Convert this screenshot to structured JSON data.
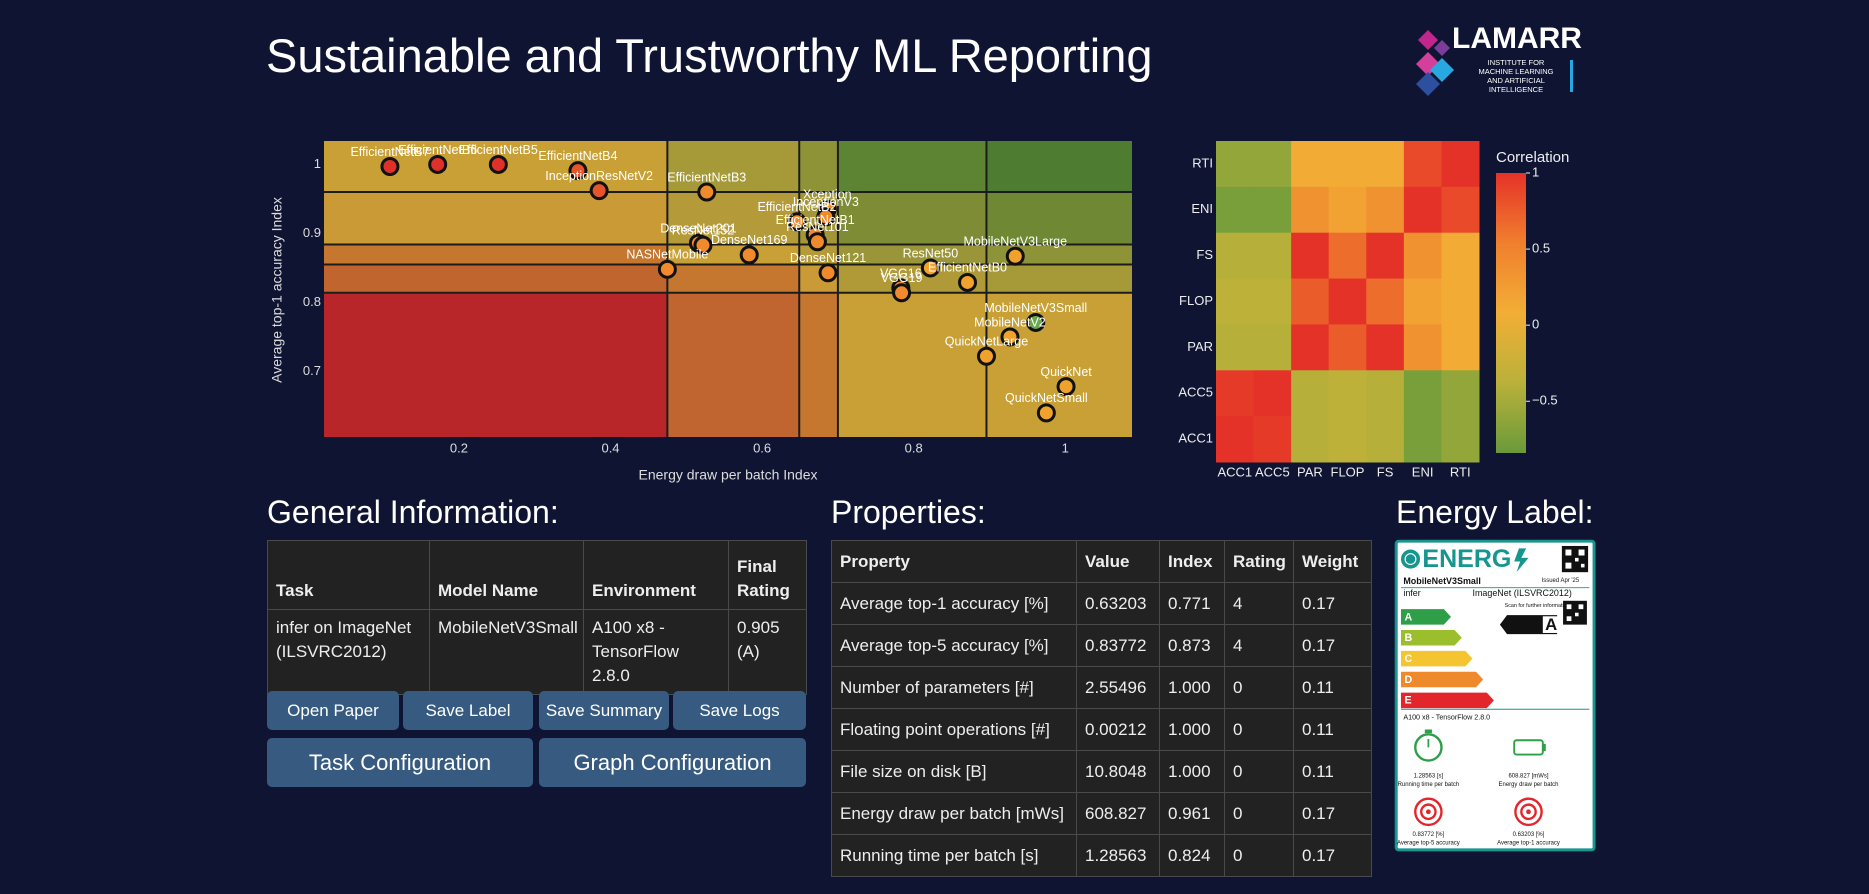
{
  "header": {
    "title": "Sustainable and Trustworthy ML Reporting",
    "logo": {
      "name": "LAMARR",
      "lines": [
        "INSTITUTE FOR",
        "MACHINE LEARNING",
        "AND ARTIFICIAL",
        "INTELLIGENCE"
      ]
    }
  },
  "scatter": {
    "type": "scatter",
    "xlabel": "Energy draw per batch Index",
    "ylabel": "Average top-1 accuracy Index",
    "xlim": [
      0.022,
      1.088
    ],
    "ylim": [
      0.605,
      1.034
    ],
    "xticks": [
      0.2,
      0.4,
      0.6,
      0.8,
      1
    ],
    "yticks": [
      0.7,
      0.8,
      0.9,
      1
    ],
    "x_bounds": [
      0.475,
      0.649,
      0.7,
      0.896
    ],
    "y_bounds": [
      0.96,
      0.884,
      0.855,
      0.814
    ],
    "region_colors": [
      [
        "#c9a035",
        "#a69a38",
        "#8f9338",
        "#5c8432",
        "#4e7c30"
      ],
      [
        "#c99a36",
        "#b49a38",
        "#a39638",
        "#7d8c35",
        "#6f8834"
      ],
      [
        "#c5772f",
        "#c9a035",
        "#b49a38",
        "#9a9538",
        "#8f9338"
      ],
      [
        "#c0652d",
        "#c5772f",
        "#c99a36",
        "#b09a38",
        "#a69a38"
      ],
      [
        "#b8262a",
        "#c06530",
        "#c5772f",
        "#c9a035",
        "#c9a035"
      ]
    ],
    "names": [
      "EfficientNetB7",
      "EfficientNetB6",
      "EfficientNetB5",
      "EfficientNetB4",
      "InceptionResNetV2",
      "EfficientNetB3",
      "Xception",
      "InceptionV3",
      "EfficientNetB2",
      "EfficientNetB1",
      "ResNet101",
      "DenseNet201",
      "ResNet152",
      "DenseNet169",
      "NASNetMobile",
      "DenseNet121",
      "ResNet50",
      "EfficientNetB0",
      "MobileNetV3Large",
      "VGG16",
      "VGG19",
      "MobileNetV3Small",
      "MobileNetV2",
      "QuickNetLarge",
      "QuickNet",
      "QuickNetSmall"
    ],
    "x": [
      0.109,
      0.172,
      0.252,
      0.357,
      0.385,
      0.527,
      0.686,
      0.684,
      0.646,
      0.67,
      0.673,
      0.516,
      0.522,
      0.583,
      0.475,
      0.687,
      0.822,
      0.871,
      0.934,
      0.783,
      0.784,
      0.961,
      0.927,
      0.896,
      1.001,
      0.975
    ],
    "y": [
      0.997,
      1.0,
      1.0,
      0.991,
      0.962,
      0.96,
      0.935,
      0.924,
      0.917,
      0.898,
      0.888,
      0.886,
      0.883,
      0.869,
      0.848,
      0.843,
      0.85,
      0.829,
      0.867,
      0.821,
      0.814,
      0.771,
      0.75,
      0.722,
      0.678,
      0.64
    ],
    "colors": [
      "#e0302a",
      "#e0302a",
      "#e0302a",
      "#e5542a",
      "#e5542a",
      "#f08a2c",
      "#f08a2c",
      "#f08a2c",
      "#f08a2c",
      "#f08a2c",
      "#f08a2c",
      "#f08a2c",
      "#f08a2c",
      "#f08a2c",
      "#f08a2c",
      "#f08a2c",
      "#f0a22c",
      "#f0a22c",
      "#f0a22c",
      "#f08a2c",
      "#f08a2c",
      "#6aa84f",
      "#f0a22c",
      "#f0a22c",
      "#f0a22c",
      "#f0a22c"
    ]
  },
  "heatmap": {
    "type": "heatmap",
    "x_categories": [
      "ACC1",
      "ACC5",
      "PAR",
      "FLOP",
      "FS",
      "ENI",
      "RTI"
    ],
    "y_categories": [
      "RTI",
      "ENI",
      "FS",
      "FLOP",
      "PAR",
      "ACC5",
      "ACC1"
    ],
    "values": [
      [
        -0.6,
        -0.6,
        0.1,
        0.1,
        0.1,
        0.85,
        1
      ],
      [
        -0.75,
        -0.75,
        0.35,
        0.2,
        0.35,
        1,
        0.85
      ],
      [
        -0.4,
        -0.4,
        1,
        0.65,
        1,
        0.35,
        0.1
      ],
      [
        -0.35,
        -0.35,
        0.75,
        1,
        0.65,
        0.2,
        0.1
      ],
      [
        -0.4,
        -0.4,
        1,
        0.75,
        1,
        0.35,
        0.1
      ],
      [
        0.95,
        1,
        -0.4,
        -0.35,
        -0.4,
        -0.75,
        -0.6
      ],
      [
        1,
        0.95,
        -0.4,
        -0.35,
        -0.4,
        -0.75,
        -0.6
      ]
    ],
    "colorbar_title": "Correlation",
    "zlim": [
      -0.84,
      1
    ],
    "zticks": [
      1,
      0.5,
      0,
      {
        "value": -0.5,
        "label": "−0.5"
      }
    ],
    "colorscale": [
      "#6a9a3a",
      "#b9b13a",
      "#f2ae35",
      "#f07f2e",
      "#e53228"
    ]
  },
  "general_information": {
    "title": "General Information:",
    "columns": [
      "Task",
      "Model Name",
      "Environment",
      "Final Rating"
    ],
    "rows": [
      [
        "infer on ImageNet (ILSVRC2012)",
        "MobileNetV3Small",
        "A100 x8 - TensorFlow 2.8.0",
        "0.905 (A)"
      ]
    ]
  },
  "buttons": [
    "Open Paper",
    "Save Label",
    "Save Summary",
    "Save Logs",
    "Task Configuration",
    "Graph Configuration"
  ],
  "properties": {
    "title": "Properties:",
    "columns": [
      "Property",
      "Value",
      "Index",
      "Rating",
      "Weight"
    ],
    "rows": [
      [
        "Average top-1 accuracy [%]",
        "0.63203",
        "0.771",
        "4",
        "0.17"
      ],
      [
        "Average top-5 accuracy [%]",
        "0.83772",
        "0.873",
        "4",
        "0.17"
      ],
      [
        "Number of parameters [#]",
        "2.55496",
        "1.000",
        "0",
        "0.11"
      ],
      [
        "Floating point operations [#]",
        "0.00212",
        "1.000",
        "0",
        "0.11"
      ],
      [
        "File size on disk [B]",
        "10.8048",
        "1.000",
        "0",
        "0.11"
      ],
      [
        "Energy draw per batch [mWs]",
        "608.827",
        "0.961",
        "0",
        "0.17"
      ],
      [
        "Running time per batch [s]",
        "1.28563",
        "0.824",
        "0",
        "0.17"
      ]
    ]
  },
  "energy_label": {
    "title": "Energy Label:",
    "brand": "ENERG",
    "model": "MobileNetV3Small",
    "issued": "Issued Apr '25",
    "task": "infer",
    "dataset": "ImageNet (ILSVRC2012)",
    "scan_note": "Scan for further information",
    "classes": [
      "A",
      "B",
      "C",
      "D",
      "E"
    ],
    "class_colors": [
      "#2e9e48",
      "#9cbd2c",
      "#f4c530",
      "#ee8a2b",
      "#e2262b"
    ],
    "rating": "A",
    "environment": "A100 x8 - TensorFlow 2.8.0",
    "metrics": [
      {
        "value": "1.28563 [s]",
        "label": "Running time per batch"
      },
      {
        "value": "608.827 [mWs]",
        "label": "Energy draw per batch"
      },
      {
        "value": "0.83772 [%]",
        "label": "Average top-5 accuracy"
      },
      {
        "value": "0.63203 [%]",
        "label": "Average top-1 accuracy"
      }
    ]
  }
}
